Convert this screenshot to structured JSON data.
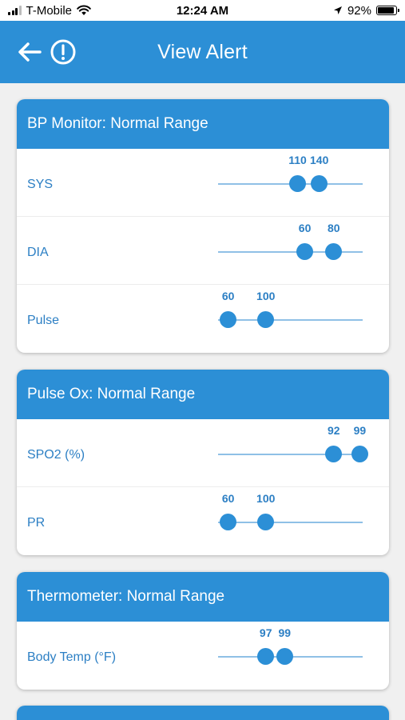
{
  "status": {
    "carrier": "T-Mobile",
    "time": "12:24 AM",
    "battery": "92%",
    "battery_level": 0.92
  },
  "header": {
    "title": "View Alert"
  },
  "cards": [
    {
      "title": "BP Monitor: Normal Range",
      "rows": [
        {
          "label": "SYS",
          "low": "110",
          "high": "140",
          "low_pos": 0.55,
          "high_pos": 0.7
        },
        {
          "label": "DIA",
          "low": "60",
          "high": "80",
          "low_pos": 0.6,
          "high_pos": 0.8
        },
        {
          "label": "Pulse",
          "low": "60",
          "high": "100",
          "low_pos": 0.07,
          "high_pos": 0.33
        }
      ]
    },
    {
      "title": "Pulse Ox: Normal Range",
      "rows": [
        {
          "label": "SPO2 (%)",
          "low": "92",
          "high": "99",
          "low_pos": 0.8,
          "high_pos": 0.98
        },
        {
          "label": "PR",
          "low": "60",
          "high": "100",
          "low_pos": 0.07,
          "high_pos": 0.33
        }
      ]
    },
    {
      "title": "Thermometer: Normal Range",
      "rows": [
        {
          "label": "Body Temp (°F)",
          "low": "97",
          "high": "99",
          "low_pos": 0.33,
          "high_pos": 0.46
        }
      ]
    }
  ]
}
